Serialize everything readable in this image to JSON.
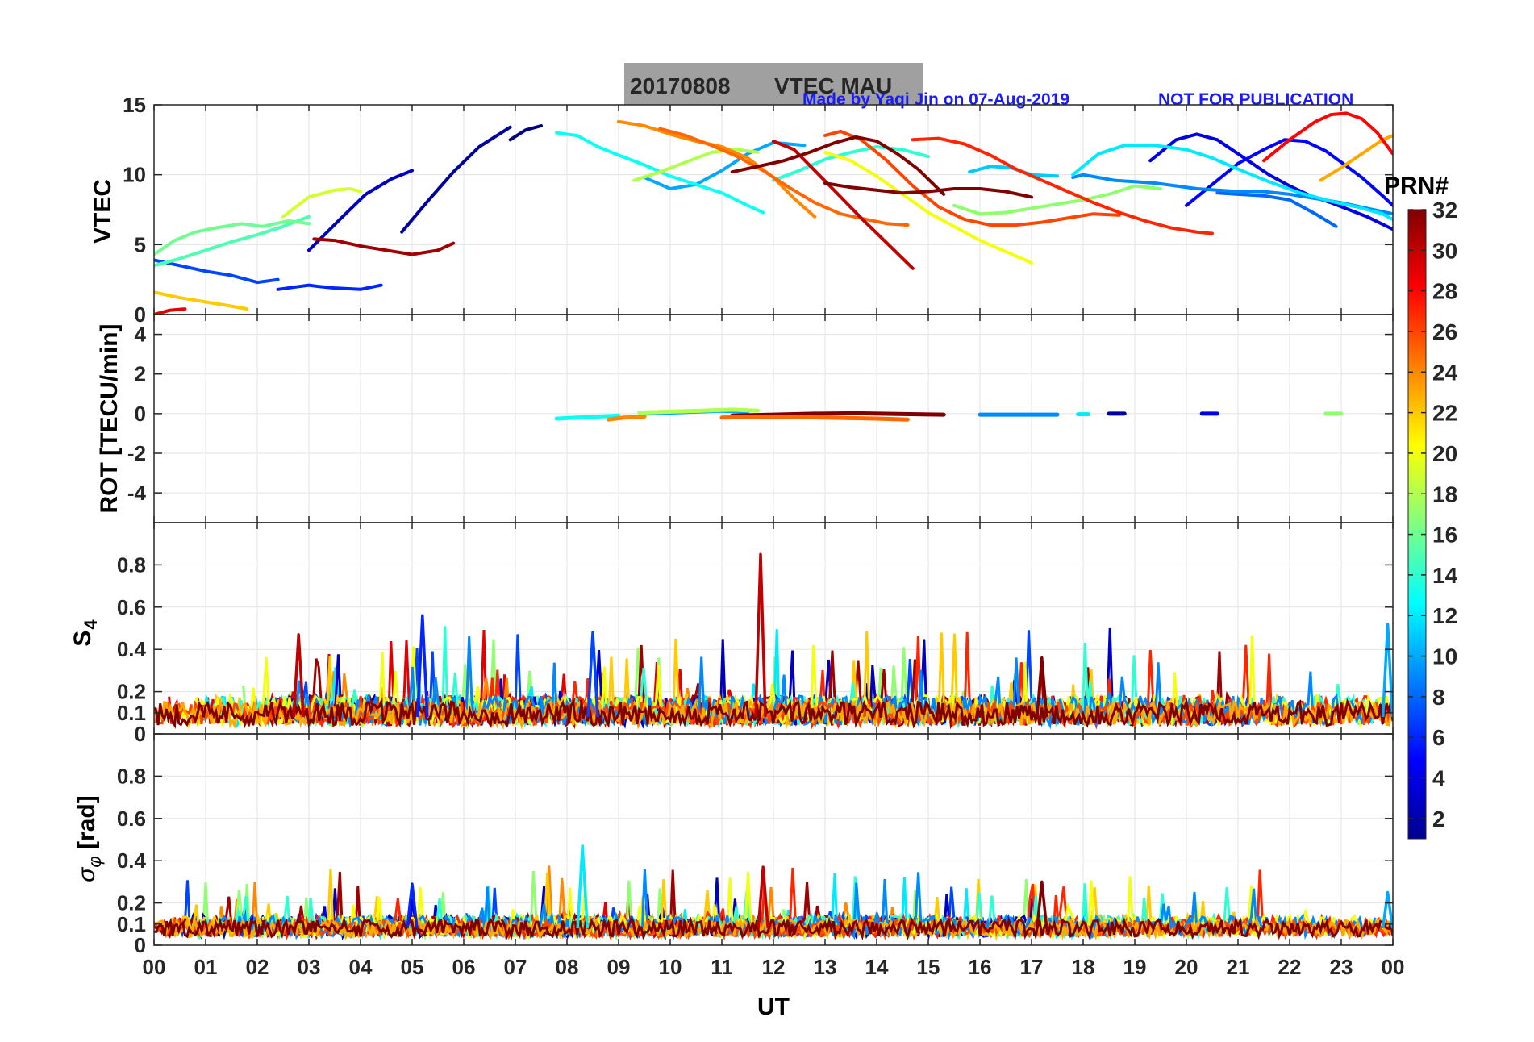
{
  "title": {
    "date": "20170808",
    "label": "VTEC  MAU"
  },
  "credit": {
    "made_by": "Made by Yaqi Jin on 07-Aug-2019",
    "notice": "NOT FOR PUBLICATION"
  },
  "x_axis": {
    "label": "UT",
    "range": [
      0,
      24
    ],
    "tick_labels": [
      "00",
      "01",
      "02",
      "03",
      "04",
      "05",
      "06",
      "07",
      "08",
      "09",
      "10",
      "11",
      "12",
      "13",
      "14",
      "15",
      "16",
      "17",
      "18",
      "19",
      "20",
      "21",
      "22",
      "23",
      "00"
    ]
  },
  "colorbar": {
    "title": "PRN#",
    "range": [
      1,
      32
    ],
    "tick_labels": [
      "2",
      "4",
      "6",
      "8",
      "10",
      "12",
      "14",
      "16",
      "18",
      "20",
      "22",
      "24",
      "26",
      "28",
      "30",
      "32"
    ],
    "colormap": "jet"
  },
  "chart_data": [
    {
      "type": "line",
      "name": "VTEC panel",
      "ylabel": "VTEC",
      "ylim": [
        0,
        15
      ],
      "yticks": [
        "0",
        "5",
        "10",
        "15"
      ],
      "grid": true,
      "series": [
        {
          "prn": 1,
          "x": [
            6.9,
            7.2,
            7.5
          ],
          "y": [
            12.5,
            13.2,
            13.5
          ]
        },
        {
          "prn": 2,
          "x": [
            4.8,
            5.3,
            5.8,
            6.3,
            6.9
          ],
          "y": [
            5.9,
            8.1,
            10.2,
            12.0,
            13.4
          ]
        },
        {
          "prn": 3,
          "x": [
            3.0,
            3.6,
            4.1,
            4.6,
            5.0
          ],
          "y": [
            4.6,
            6.8,
            8.6,
            9.7,
            10.3
          ]
        },
        {
          "prn": 4,
          "x": [
            19.3,
            19.8,
            20.2,
            20.6,
            21.0,
            21.6,
            22.0,
            22.4,
            22.8,
            23.5,
            24.0
          ],
          "y": [
            11.0,
            12.5,
            12.9,
            12.5,
            11.5,
            10.0,
            9.2,
            8.5,
            8.0,
            7.0,
            6.1
          ]
        },
        {
          "prn": 5,
          "x": [
            20.0,
            20.5,
            21.0,
            21.5,
            21.9,
            22.3,
            22.7,
            23.0,
            23.4,
            23.8,
            24.0
          ],
          "y": [
            7.8,
            9.3,
            10.8,
            11.8,
            12.5,
            12.4,
            11.7,
            10.9,
            9.8,
            8.5,
            7.8
          ]
        },
        {
          "prn": 6,
          "x": [
            2.4,
            2.8,
            3.0,
            3.2,
            3.5,
            4.0,
            4.4
          ],
          "y": [
            1.8,
            2.0,
            2.1,
            2.0,
            1.9,
            1.8,
            2.1
          ]
        },
        {
          "prn": 7,
          "x": [
            0.0,
            0.5,
            1.0,
            1.5,
            2.0,
            2.4
          ],
          "y": [
            3.9,
            3.5,
            3.1,
            2.8,
            2.3,
            2.5
          ]
        },
        {
          "prn": 8,
          "x": [
            20.6,
            21.0,
            21.5,
            22.0,
            22.5,
            22.9
          ],
          "y": [
            8.7,
            8.6,
            8.5,
            8.2,
            7.2,
            6.3
          ]
        },
        {
          "prn": 9,
          "x": [
            17.8,
            18.0,
            18.3,
            18.6,
            19.0,
            19.4,
            19.8,
            20.2,
            20.6,
            21.0,
            21.5,
            22.0,
            22.5,
            23.0,
            23.5,
            24.0
          ],
          "y": [
            9.8,
            10.0,
            9.8,
            9.6,
            9.5,
            9.4,
            9.2,
            9.0,
            8.9,
            8.8,
            8.8,
            8.6,
            8.3,
            8.0,
            7.6,
            7.2
          ]
        },
        {
          "prn": 10,
          "x": [
            9.5,
            10.0,
            10.5,
            11.0,
            11.5,
            12.0,
            12.6
          ],
          "y": [
            9.8,
            9.0,
            9.3,
            10.3,
            11.5,
            12.3,
            12.1
          ]
        },
        {
          "prn": 11,
          "x": [
            15.8,
            16.2,
            16.6,
            17.0,
            17.5
          ],
          "y": [
            10.2,
            10.6,
            10.5,
            10.0,
            9.9
          ]
        },
        {
          "prn": 12,
          "x": [
            17.8,
            18.3,
            18.8,
            19.4,
            20.0,
            20.5,
            21.0,
            21.6,
            22.2,
            22.8,
            23.3,
            23.8,
            24.0
          ],
          "y": [
            10.0,
            11.5,
            12.1,
            12.1,
            11.8,
            11.2,
            10.4,
            9.5,
            8.7,
            8.1,
            7.7,
            7.2,
            6.8
          ]
        },
        {
          "prn": 13,
          "x": [
            7.8,
            8.2,
            8.6,
            9.0,
            9.5,
            10.0,
            10.5,
            11.0,
            11.5,
            11.8
          ],
          "y": [
            13.0,
            12.8,
            12.0,
            11.4,
            10.7,
            9.9,
            9.3,
            8.7,
            7.8,
            7.3
          ]
        },
        {
          "prn": 14,
          "x": [
            12.0,
            12.5,
            13.0,
            13.5,
            14.0,
            14.5,
            15.0
          ],
          "y": [
            9.6,
            10.3,
            11.1,
            11.6,
            12.0,
            11.8,
            11.3
          ]
        },
        {
          "prn": 15,
          "x": [
            0.0,
            0.5,
            1.0,
            1.5,
            2.0,
            2.5,
            3.0
          ],
          "y": [
            3.5,
            4.0,
            4.6,
            5.2,
            5.7,
            6.3,
            7.0
          ]
        },
        {
          "prn": 16,
          "x": [
            0.0,
            0.4,
            0.8,
            1.2,
            1.7,
            2.1,
            2.6,
            3.0
          ],
          "y": [
            4.3,
            5.3,
            5.9,
            6.2,
            6.5,
            6.3,
            6.7,
            6.5
          ]
        },
        {
          "prn": 17,
          "x": [
            15.5,
            16.0,
            16.5,
            17.0,
            17.5,
            18.0,
            18.5,
            19.0,
            19.5
          ],
          "y": [
            7.8,
            7.2,
            7.3,
            7.6,
            7.9,
            8.2,
            8.6,
            9.2,
            9.0
          ]
        },
        {
          "prn": 18,
          "x": [
            9.3,
            9.8,
            10.3,
            10.8,
            11.3,
            11.7
          ],
          "y": [
            9.6,
            10.2,
            10.9,
            11.6,
            11.8,
            11.6
          ]
        },
        {
          "prn": 19,
          "x": [
            2.5,
            3.0,
            3.5,
            3.8,
            4.0
          ],
          "y": [
            7.0,
            8.4,
            8.9,
            9.0,
            8.8
          ]
        },
        {
          "prn": 20,
          "x": [
            13.0,
            13.5,
            14.0,
            14.5,
            15.0,
            15.5,
            16.0,
            16.5,
            17.0
          ],
          "y": [
            11.6,
            11.0,
            9.9,
            8.6,
            7.3,
            6.3,
            5.3,
            4.5,
            3.7
          ]
        },
        {
          "prn": 22,
          "x": [
            0.0,
            0.5,
            1.0,
            1.5,
            1.8
          ],
          "y": [
            1.6,
            1.2,
            0.9,
            0.6,
            0.4
          ]
        },
        {
          "prn": 23,
          "x": [
            22.6,
            23.0,
            23.4,
            23.8,
            24.0
          ],
          "y": [
            9.6,
            10.5,
            11.5,
            12.5,
            12.8
          ]
        },
        {
          "prn": 24,
          "x": [
            9.0,
            9.5,
            10.0,
            10.5,
            11.0,
            11.5,
            12.0,
            12.4,
            12.8
          ],
          "y": [
            13.8,
            13.5,
            12.9,
            12.4,
            12.0,
            11.2,
            9.8,
            8.3,
            7.0
          ]
        },
        {
          "prn": 25,
          "x": [
            9.8,
            10.3,
            10.8,
            11.3,
            11.8,
            12.3,
            12.8,
            13.3,
            13.8,
            14.2,
            14.6
          ],
          "y": [
            13.3,
            12.8,
            12.1,
            11.3,
            10.3,
            9.1,
            8.0,
            7.2,
            6.8,
            6.5,
            6.4
          ]
        },
        {
          "prn": 26,
          "x": [
            13.0,
            13.3,
            13.7,
            14.2,
            14.7,
            15.2,
            15.7,
            16.2,
            16.7,
            17.2,
            17.7,
            18.2,
            18.7
          ],
          "y": [
            12.8,
            13.1,
            12.5,
            11.0,
            9.2,
            7.7,
            6.8,
            6.4,
            6.4,
            6.6,
            6.9,
            7.2,
            7.1
          ]
        },
        {
          "prn": 27,
          "x": [
            14.7,
            15.2,
            15.7,
            16.2,
            16.7,
            17.2,
            17.7,
            18.2,
            18.7,
            19.2,
            19.7,
            20.2,
            20.5
          ],
          "y": [
            12.5,
            12.6,
            12.2,
            11.4,
            10.4,
            9.6,
            8.8,
            8.0,
            7.3,
            6.7,
            6.2,
            5.9,
            5.8
          ]
        },
        {
          "prn": 28,
          "x": [
            21.5,
            22.0,
            22.5,
            22.8,
            23.1,
            23.4,
            23.7,
            24.0
          ],
          "y": [
            11.0,
            12.5,
            13.8,
            14.3,
            14.4,
            14.0,
            13.0,
            11.5
          ]
        },
        {
          "prn": 29,
          "x": [
            0.0,
            0.3,
            0.6
          ],
          "y": [
            0.0,
            0.3,
            0.4
          ]
        },
        {
          "prn": 30,
          "x": [
            12.0,
            12.4,
            12.8,
            13.2,
            13.7,
            14.2,
            14.7
          ],
          "y": [
            12.4,
            11.8,
            10.3,
            8.8,
            6.9,
            5.1,
            3.3
          ]
        },
        {
          "prn": 31,
          "x": [
            3.1,
            3.5,
            4.0,
            4.5,
            5.0,
            5.5,
            5.8
          ],
          "y": [
            5.4,
            5.3,
            4.9,
            4.6,
            4.3,
            4.6,
            5.1
          ]
        },
        {
          "prn": 32,
          "x": [
            11.2,
            11.7,
            12.2,
            12.7,
            13.2,
            13.6,
            14.0,
            14.4,
            14.8,
            15.3
          ],
          "y": [
            10.2,
            10.6,
            11.0,
            11.6,
            12.3,
            12.7,
            12.4,
            11.5,
            10.4,
            8.6
          ]
        },
        {
          "prn": 32,
          "x": [
            13.0,
            13.5,
            14.0,
            14.5,
            15.0,
            15.5,
            16.0,
            16.5,
            17.0
          ],
          "y": [
            9.4,
            9.1,
            8.9,
            8.7,
            8.8,
            9.0,
            9.0,
            8.8,
            8.4
          ]
        }
      ]
    },
    {
      "type": "scatter",
      "name": "ROT panel",
      "ylabel": "ROT [TECU/min]",
      "ylim": [
        -5.5,
        5
      ],
      "yticks": [
        "-4",
        "-2",
        "0",
        "2",
        "4"
      ],
      "grid": true,
      "series": [
        {
          "prn": 13,
          "x": [
            7.8,
            8.2,
            8.6,
            9.0
          ],
          "y": [
            -0.25,
            -0.2,
            -0.15,
            -0.1
          ]
        },
        {
          "prn": 24,
          "x": [
            8.8,
            9.1,
            9.5
          ],
          "y": [
            -0.3,
            -0.2,
            -0.15
          ]
        },
        {
          "prn": 10,
          "x": [
            9.5,
            10.0,
            10.5,
            11.0,
            11.5
          ],
          "y": [
            0.0,
            0.05,
            0.1,
            0.15,
            0.1
          ]
        },
        {
          "prn": 18,
          "x": [
            9.4,
            10.0,
            10.6,
            11.2,
            11.7
          ],
          "y": [
            0.05,
            0.1,
            0.15,
            0.2,
            0.15
          ]
        },
        {
          "prn": 32,
          "x": [
            11.2,
            12.0,
            12.8,
            13.6,
            14.4,
            15.3
          ],
          "y": [
            -0.1,
            -0.05,
            0.0,
            0.02,
            -0.02,
            -0.05
          ]
        },
        {
          "prn": 25,
          "x": [
            11.0,
            12.0,
            13.0,
            14.0,
            14.6
          ],
          "y": [
            -0.2,
            -0.15,
            -0.2,
            -0.25,
            -0.3
          ]
        },
        {
          "prn": 9,
          "x": [
            16.0,
            16.5,
            17.0,
            17.5
          ],
          "y": [
            -0.05,
            -0.05,
            -0.05,
            -0.05
          ]
        },
        {
          "prn": 12,
          "x": [
            17.9,
            18.1
          ],
          "y": [
            -0.03,
            -0.03
          ]
        },
        {
          "prn": 2,
          "x": [
            18.5,
            18.8
          ],
          "y": [
            0.0,
            0.0
          ]
        },
        {
          "prn": 4,
          "x": [
            20.3,
            20.6
          ],
          "y": [
            0.0,
            0.0
          ]
        },
        {
          "prn": 17,
          "x": [
            22.7,
            23.0
          ],
          "y": [
            0.0,
            0.0
          ]
        }
      ]
    },
    {
      "type": "line",
      "name": "S4 panel",
      "ylabel": "S4",
      "ylim": [
        0,
        1.0
      ],
      "yticks": [
        "0",
        "0.1",
        "0.2",
        "0.4",
        "0.6",
        "0.8"
      ],
      "grid": true,
      "notable_peaks": [
        {
          "prn": 30,
          "x": 11.75,
          "y": 0.85
        },
        {
          "prn": 6,
          "x": 5.2,
          "y": 0.56
        },
        {
          "prn": 10,
          "x": 23.9,
          "y": 0.52
        },
        {
          "prn": 7,
          "x": 8.5,
          "y": 0.48
        },
        {
          "prn": 30,
          "x": 2.8,
          "y": 0.47
        },
        {
          "prn": 32,
          "x": 17.2,
          "y": 0.36
        }
      ]
    },
    {
      "type": "line",
      "name": "Sigma phi panel",
      "ylabel": "σ_φ [rad]",
      "ylim": [
        0,
        1.0
      ],
      "yticks": [
        "0",
        "0.1",
        "0.2",
        "0.4",
        "0.6",
        "0.8"
      ],
      "grid": true,
      "notable_peaks": [
        {
          "prn": 12,
          "x": 8.3,
          "y": 0.47
        },
        {
          "prn": 30,
          "x": 11.8,
          "y": 0.37
        },
        {
          "prn": 6,
          "x": 5.0,
          "y": 0.29
        },
        {
          "prn": 32,
          "x": 17.2,
          "y": 0.3
        },
        {
          "prn": 10,
          "x": 23.9,
          "y": 0.25
        }
      ]
    }
  ]
}
